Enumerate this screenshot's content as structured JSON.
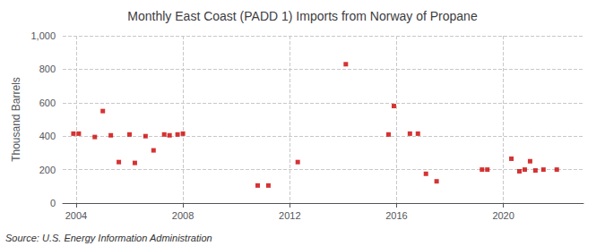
{
  "chart_data": {
    "type": "scatter",
    "title": "Monthly East Coast (PADD 1) Imports from Norway of Propane",
    "ylabel": "Thousand Barrels",
    "annotations": [
      "Source: U.S. Energy Information Administration"
    ],
    "color": "#cc0000",
    "marker": "square",
    "grid": true,
    "xlim": [
      2003.5,
      2023.0
    ],
    "xticks": [
      2004,
      2008,
      2012,
      2016,
      2020
    ],
    "ylim": [
      0,
      1000
    ],
    "yticks": [
      0,
      200,
      400,
      600,
      800,
      {
        "value": 1000,
        "label": "1,000"
      }
    ],
    "x": [
      2003.9,
      2004.1,
      2004.7,
      2005.0,
      2005.3,
      2005.6,
      2006.0,
      2006.2,
      2006.6,
      2006.9,
      2007.3,
      2007.5,
      2007.8,
      2008.0,
      2010.8,
      2011.2,
      2012.3,
      2014.1,
      2015.7,
      2015.9,
      2016.5,
      2016.8,
      2017.1,
      2017.5,
      2019.2,
      2019.4,
      2020.3,
      2020.6,
      2020.8,
      2021.0,
      2021.2,
      2021.5,
      2022.0
    ],
    "values": [
      415,
      415,
      395,
      550,
      405,
      245,
      410,
      240,
      400,
      315,
      410,
      405,
      410,
      415,
      105,
      105,
      245,
      830,
      410,
      580,
      415,
      415,
      175,
      130,
      200,
      200,
      265,
      190,
      200,
      250,
      195,
      200,
      200
    ]
  }
}
